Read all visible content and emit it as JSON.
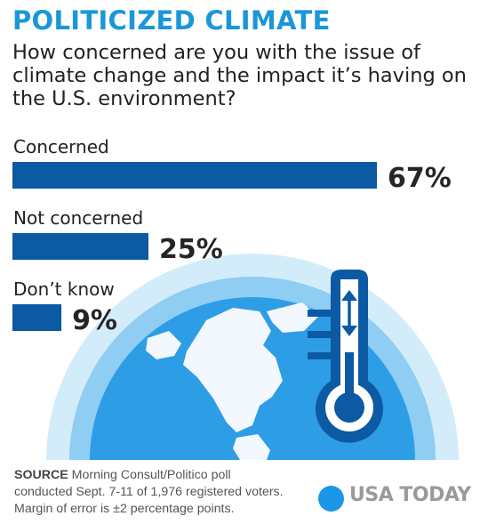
{
  "header": {
    "title": "POLITICIZED CLIMATE",
    "question": "How concerned are you with the issue of climate change and the impact it’s having on the U.S. environment?"
  },
  "chart_data": {
    "type": "bar",
    "orientation": "horizontal",
    "categories": [
      "Concerned",
      "Not concerned",
      "Don’t know"
    ],
    "values": [
      67,
      25,
      9
    ],
    "value_labels": [
      "67%",
      "25%",
      "9%"
    ],
    "unit": "%",
    "bar_color": "#0c5aa3"
  },
  "illustration": {
    "icons": [
      "globe-icon",
      "thermometer-icon"
    ],
    "colors": {
      "arc_outer": "#d3ecfa",
      "arc_middle": "#8fcdf3",
      "ocean": "#2d9de6",
      "land": "#f2f8fe",
      "thermometer": "#0c5aa3"
    }
  },
  "footer": {
    "source_label": "SOURCE",
    "source_text": "Morning Consult/Politico poll",
    "line2": "conducted Sept. 7-11 of 1,976 registered voters.",
    "line3": "Margin of error is ±2 percentage points.",
    "brand": "USA TODAY"
  }
}
